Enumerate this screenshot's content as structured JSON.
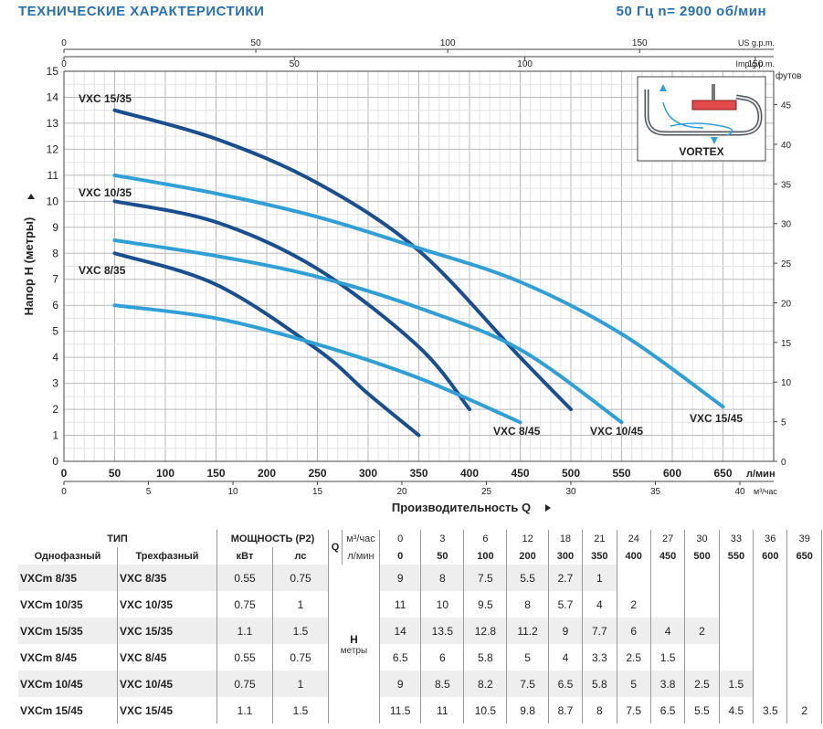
{
  "header": {
    "title": "ТЕХНИЧЕСКИЕ ХАРАКТЕРИСТИКИ",
    "frequency": "50 Гц  n= 2900 об/мин"
  },
  "chart_data": {
    "type": "line",
    "title": "",
    "ylabel": "Напор H (метры)",
    "xlabel": "Производительность Q",
    "x_unit_label": "л/мин",
    "x2_unit_label": "м³/час",
    "us_gpm_label": "US g.p.m.",
    "imp_gpm_label": "Imp g.p.m.",
    "feet_label": "футов",
    "xlim": [
      0,
      700
    ],
    "ylim": [
      0,
      15
    ],
    "x_ticks": [
      "0",
      "50",
      "100",
      "150",
      "200",
      "250",
      "300",
      "350",
      "400",
      "450",
      "500",
      "550",
      "600",
      "650"
    ],
    "m3h_ticks": [
      "0",
      "5",
      "10",
      "15",
      "20",
      "25",
      "30",
      "35",
      "40"
    ],
    "y_ticks": [
      "0",
      "1",
      "2",
      "3",
      "4",
      "5",
      "6",
      "7",
      "8",
      "9",
      "10",
      "11",
      "12",
      "13",
      "14",
      "15"
    ],
    "feet_ticks": [
      "0",
      "5",
      "10",
      "15",
      "20",
      "25",
      "30",
      "35",
      "40",
      "45"
    ],
    "us_gpm_ticks": [
      "0",
      "50",
      "100",
      "150"
    ],
    "imp_gpm_ticks": [
      "0",
      "50",
      "100",
      "150"
    ],
    "grid": true,
    "series": [
      {
        "name": "VXC 15/35",
        "color": "#1a4f8f",
        "x": [
          50,
          150,
          250,
          350,
          450,
          500
        ],
        "y": [
          13.5,
          12.4,
          10.7,
          8.1,
          4.0,
          2.0
        ]
      },
      {
        "name": "VXC 10/35",
        "color": "#1a4f8f",
        "x": [
          50,
          150,
          250,
          350,
          400
        ],
        "y": [
          10.0,
          9.2,
          7.4,
          4.4,
          2.0
        ]
      },
      {
        "name": "VXC 8/35",
        "color": "#1a4f8f",
        "x": [
          50,
          150,
          250,
          300,
          350
        ],
        "y": [
          8.0,
          6.8,
          4.3,
          2.6,
          1.0
        ]
      },
      {
        "name": "VXC 15/45",
        "color": "#2f9fd6",
        "x": [
          50,
          150,
          250,
          350,
          450,
          550,
          650
        ],
        "y": [
          11.0,
          10.3,
          9.4,
          8.2,
          6.9,
          4.9,
          2.1
        ]
      },
      {
        "name": "VXC 10/45",
        "color": "#2f9fd6",
        "x": [
          50,
          150,
          250,
          350,
          450,
          550
        ],
        "y": [
          8.5,
          7.9,
          7.1,
          5.9,
          4.3,
          1.5
        ]
      },
      {
        "name": "VXC 8/45",
        "color": "#2f9fd6",
        "x": [
          50,
          150,
          250,
          350,
          450
        ],
        "y": [
          6.0,
          5.5,
          4.5,
          3.2,
          1.5
        ]
      }
    ],
    "inset_label": "VORTEX"
  },
  "table": {
    "type_label": "ТИП",
    "single_phase_label": "Однофазный",
    "three_phase_label": "Трехфазный",
    "power_label": "МОЩНОСТЬ (P2)",
    "kw_label": "кВт",
    "hp_label": "лс",
    "q_label": "Q",
    "m3h_label": "м³/час",
    "lmin_label": "л/мин",
    "h_label": "H",
    "h_unit": "метры",
    "q_m3h": [
      "0",
      "3",
      "6",
      "12",
      "18",
      "21",
      "24",
      "27",
      "30",
      "33",
      "36",
      "39"
    ],
    "q_lmin": [
      "0",
      "50",
      "100",
      "200",
      "300",
      "350",
      "400",
      "450",
      "500",
      "550",
      "600",
      "650"
    ],
    "rows": [
      {
        "single": "VXCm  8/35",
        "three": "VXC  8/35",
        "kw": "0.55",
        "hp": "0.75",
        "h": [
          "9",
          "8",
          "7.5",
          "5.5",
          "2.7",
          "1",
          "",
          "",
          "",
          "",
          "",
          ""
        ]
      },
      {
        "single": "VXCm 10/35",
        "three": "VXC 10/35",
        "kw": "0.75",
        "hp": "1",
        "h": [
          "11",
          "10",
          "9.5",
          "8",
          "5.7",
          "4",
          "2",
          "",
          "",
          "",
          "",
          ""
        ]
      },
      {
        "single": "VXCm 15/35",
        "three": "VXC 15/35",
        "kw": "1.1",
        "hp": "1.5",
        "h": [
          "14",
          "13.5",
          "12.8",
          "11.2",
          "9",
          "7.7",
          "6",
          "4",
          "2",
          "",
          "",
          ""
        ]
      },
      {
        "single": "VXCm  8/45",
        "three": "VXC  8/45",
        "kw": "0.55",
        "hp": "0.75",
        "h": [
          "6.5",
          "6",
          "5.8",
          "5",
          "4",
          "3.3",
          "2.5",
          "1.5",
          "",
          "",
          "",
          ""
        ]
      },
      {
        "single": "VXCm 10/45",
        "three": "VXC 10/45",
        "kw": "0.75",
        "hp": "1",
        "h": [
          "9",
          "8.5",
          "8.2",
          "7.5",
          "6.5",
          "5.8",
          "5",
          "3.8",
          "2.5",
          "1.5",
          "",
          ""
        ]
      },
      {
        "single": "VXCm 15/45",
        "three": "VXC 15/45",
        "kw": "1.1",
        "hp": "1.5",
        "h": [
          "11.5",
          "11",
          "10.5",
          "9.8",
          "8.7",
          "8",
          "7.5",
          "6.5",
          "5.5",
          "4.5",
          "3.5",
          "2"
        ]
      }
    ]
  }
}
